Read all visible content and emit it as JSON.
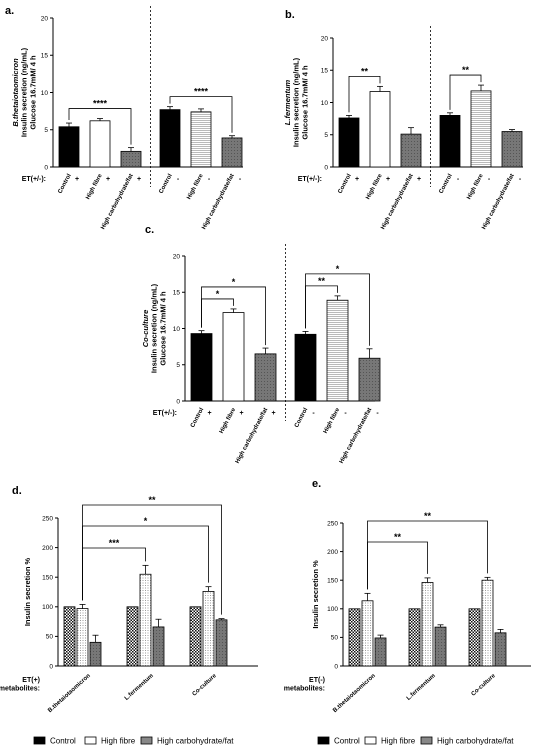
{
  "fill_colors": {
    "Control": "#000000",
    "High fibre": "#ffffff",
    "High carbohydrate/fat": "#888888"
  },
  "chart_data": [
    {
      "id": "a",
      "type": "bar",
      "panel_label": "a.",
      "ylabel_lines": [
        "B.thetaiotaomicron",
        "Insulin secretion (ng/mL)",
        "Glucose 16.7mM/ 4 h"
      ],
      "ylim": [
        0,
        20
      ],
      "yticks": [
        0,
        5,
        10,
        15,
        20
      ],
      "et_label": "ET(+/-):",
      "categories": [
        "Control",
        "High fibre",
        "High carbohydrate/fat",
        "Control",
        "High fibre",
        "High carbohydrate/fat"
      ],
      "et_marks": [
        "+",
        "+",
        "+",
        "-",
        "-",
        "-"
      ],
      "values": [
        5.4,
        6.2,
        2.1,
        7.7,
        7.4,
        3.9
      ],
      "errors": [
        0.5,
        0.3,
        0.5,
        0.4,
        0.4,
        0.3
      ],
      "fills": [
        "Control",
        "High fibre",
        "High carbohydrate/fat",
        "Control",
        "High fibre",
        "High carbohydrate/fat"
      ],
      "significance": [
        {
          "from": 0,
          "to": 2,
          "label": "****"
        },
        {
          "from": 3,
          "to": 5,
          "label": "****"
        }
      ]
    },
    {
      "id": "b",
      "type": "bar",
      "panel_label": "b.",
      "ylabel_lines": [
        "L.fermentum",
        "Insulin secretion (ng/mL)",
        "Glucose 16.7mM/ 4 h"
      ],
      "ylim": [
        0,
        20
      ],
      "yticks": [
        0,
        5,
        10,
        15,
        20
      ],
      "et_label": "ET(+/-):",
      "categories": [
        "Control",
        "High fibre",
        "High carbohydrate/fat",
        "Control",
        "High fibre",
        "High carbohydrate/fat"
      ],
      "et_marks": [
        "+",
        "+",
        "+",
        "-",
        "-",
        "-"
      ],
      "values": [
        7.6,
        11.7,
        5.1,
        8.0,
        11.8,
        5.5
      ],
      "errors": [
        0.4,
        0.8,
        1.0,
        0.4,
        0.9,
        0.3
      ],
      "fills": [
        "Control",
        "High fibre",
        "High carbohydrate/fat",
        "Control",
        "High fibre",
        "High carbohydrate/fat"
      ],
      "significance": [
        {
          "from": 0,
          "to": 1,
          "label": "**"
        },
        {
          "from": 3,
          "to": 4,
          "label": "**"
        }
      ]
    },
    {
      "id": "c",
      "type": "bar",
      "panel_label": "c.",
      "ylabel_lines": [
        "Co-culture",
        "Insulin secretion (ng/mL)",
        "Glucose 16.7mM/ 4 h"
      ],
      "ylim": [
        0,
        20
      ],
      "yticks": [
        0,
        5,
        10,
        15,
        20
      ],
      "et_label": "ET(+/-):",
      "categories": [
        "Control",
        "High fibre",
        "High carbohydrate/fat",
        "Control",
        "High fibre",
        "High carbohydrate/fat"
      ],
      "et_marks": [
        "+",
        "+",
        "+",
        "-",
        "-",
        "-"
      ],
      "values": [
        9.3,
        12.2,
        6.5,
        9.2,
        13.9,
        5.9
      ],
      "errors": [
        0.4,
        0.5,
        0.8,
        0.4,
        0.6,
        1.3
      ],
      "fills": [
        "Control",
        "High fibre",
        "High carbohydrate/fat",
        "Control",
        "High fibre",
        "High carbohydrate/fat"
      ],
      "significance": [
        {
          "from": 0,
          "to": 1,
          "label": "*"
        },
        {
          "from": 0,
          "to": 2,
          "label": "*"
        },
        {
          "from": 3,
          "to": 4,
          "label": "**"
        },
        {
          "from": 3,
          "to": 5,
          "label": "*"
        }
      ]
    },
    {
      "id": "d",
      "type": "bar",
      "panel_label": "d.",
      "ylabel": "Insulin secretion %",
      "ylim": [
        0,
        250
      ],
      "yticks": [
        0,
        50,
        100,
        150,
        200,
        250
      ],
      "group_caption": [
        "ET(+)",
        "metabolites:"
      ],
      "categories": [
        "B.thetaiotaomicron",
        "L.fermentum",
        "Co-culture"
      ],
      "series": [
        {
          "name": "Control",
          "values": [
            100,
            100,
            100
          ],
          "errors": [
            0,
            0,
            0
          ]
        },
        {
          "name": "High fibre",
          "values": [
            97,
            155,
            126
          ],
          "errors": [
            7,
            15,
            8
          ]
        },
        {
          "name": "High carbohydrate/fat",
          "values": [
            40,
            66,
            78
          ],
          "errors": [
            12,
            13,
            2
          ]
        }
      ],
      "significance": [
        {
          "from": [
            0,
            1
          ],
          "to": [
            1,
            1
          ],
          "label": "***"
        },
        {
          "from": [
            0,
            1
          ],
          "to": [
            2,
            1
          ],
          "label": "*"
        },
        {
          "from": [
            0,
            1
          ],
          "to": [
            2,
            2
          ],
          "label": "**"
        }
      ]
    },
    {
      "id": "e",
      "type": "bar",
      "panel_label": "e.",
      "ylabel": "Insulin secretion %",
      "ylim": [
        0,
        250
      ],
      "yticks": [
        0,
        50,
        100,
        150,
        200,
        250
      ],
      "group_caption": [
        "ET(-)",
        "metabolites:"
      ],
      "categories": [
        "B.thetaiotaomicron",
        "L.fermentum",
        "Co-culture"
      ],
      "series": [
        {
          "name": "Control",
          "values": [
            100,
            100,
            100
          ],
          "errors": [
            0,
            0,
            0
          ]
        },
        {
          "name": "High fibre",
          "values": [
            114,
            146,
            150
          ],
          "errors": [
            13,
            8,
            5
          ]
        },
        {
          "name": "High carbohydrate/fat",
          "values": [
            49,
            68,
            58
          ],
          "errors": [
            5,
            4,
            6
          ]
        }
      ],
      "significance": [
        {
          "from": [
            0,
            1
          ],
          "to": [
            1,
            1
          ],
          "label": "**"
        },
        {
          "from": [
            0,
            1
          ],
          "to": [
            2,
            1
          ],
          "label": "**"
        }
      ]
    }
  ],
  "legend_items": [
    "Control",
    "High fibre",
    "High carbohydrate/fat"
  ]
}
